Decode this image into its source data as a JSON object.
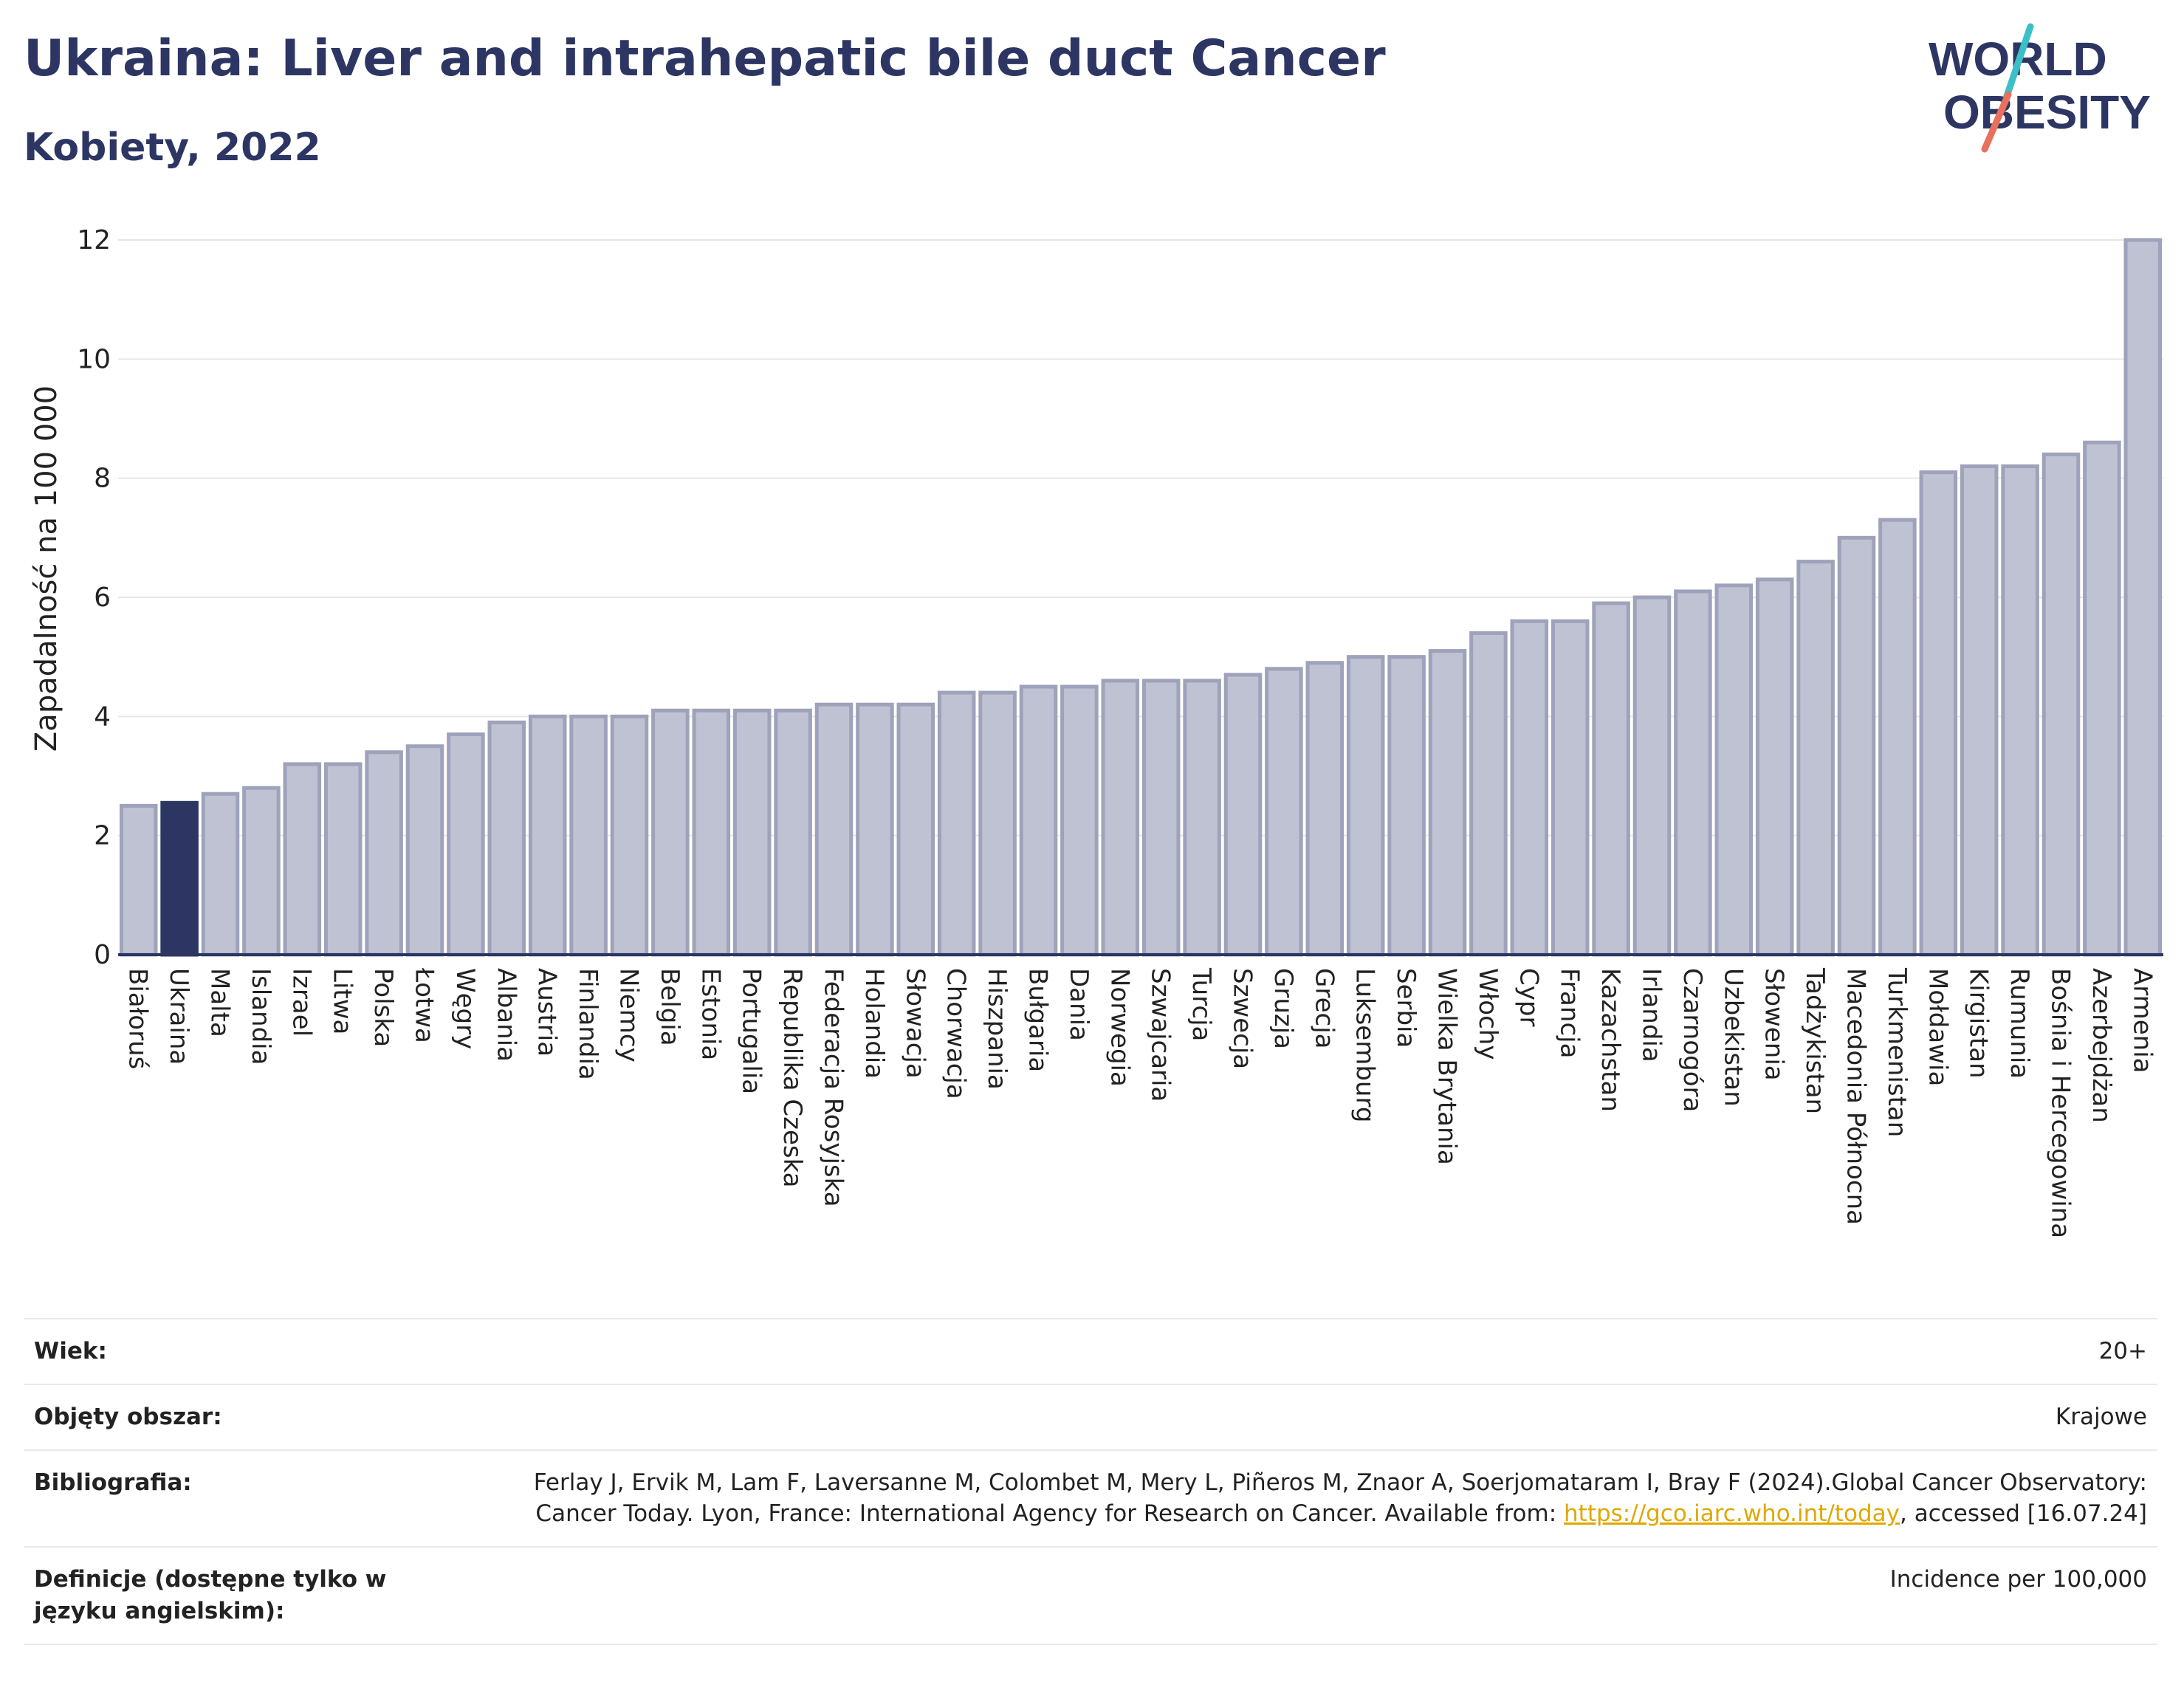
{
  "header": {
    "title": "Ukraina: Liver and intrahepatic bile duct Cancer",
    "subtitle": "Kobiety, 2022"
  },
  "logo": {
    "line1": "WORLD",
    "line2": "OBESITY",
    "colors": {
      "text": "#2d3663",
      "slash_teal": "#3cbfc6",
      "slash_coral": "#e8705c"
    }
  },
  "chart_data": {
    "type": "bar",
    "title": "",
    "xlabel": "",
    "ylabel": "Zapadalność na 100 000",
    "ylim": [
      0,
      12
    ],
    "yticks": [
      0,
      2,
      4,
      6,
      8,
      10,
      12
    ],
    "grid": true,
    "highlight": "Ukraina",
    "categories": [
      "Białoruś",
      "Ukraina",
      "Malta",
      "Islandia",
      "Izrael",
      "Litwa",
      "Polska",
      "Łotwa",
      "Węgry",
      "Albania",
      "Austria",
      "Finlandia",
      "Niemcy",
      "Belgia",
      "Estonia",
      "Portugalia",
      "Republika Czeska",
      "Federacja Rosyjska",
      "Holandia",
      "Słowacja",
      "Chorwacja",
      "Hiszpania",
      "Bułgaria",
      "Dania",
      "Norwegia",
      "Szwajcaria",
      "Turcja",
      "Szwecja",
      "Gruzja",
      "Grecja",
      "Luksemburg",
      "Serbia",
      "Wielka Brytania",
      "Włochy",
      "Cypr",
      "Francja",
      "Kazachstan",
      "Irlandia",
      "Czarnogóra",
      "Uzbekistan",
      "Słowenia",
      "Tadżykistan",
      "Macedonia Północna",
      "Turkmenistan",
      "Mołdawia",
      "Kirgistan",
      "Rumunia",
      "Bośnia i Hercegowina",
      "Azerbejdżan",
      "Armenia"
    ],
    "values": [
      2.5,
      2.55,
      2.7,
      2.8,
      3.2,
      3.2,
      3.4,
      3.5,
      3.7,
      3.9,
      4.0,
      4.0,
      4.0,
      4.1,
      4.1,
      4.1,
      4.1,
      4.2,
      4.2,
      4.2,
      4.4,
      4.4,
      4.5,
      4.5,
      4.6,
      4.6,
      4.6,
      4.7,
      4.8,
      4.9,
      5.0,
      5.0,
      5.1,
      5.4,
      5.6,
      5.6,
      5.9,
      6.0,
      6.1,
      6.2,
      6.3,
      6.6,
      7.0,
      7.3,
      8.1,
      8.2,
      8.2,
      8.4,
      8.6,
      12.0
    ],
    "colors": {
      "bar": "#bfc2d2",
      "bar_border": "#9ea2ba",
      "highlight": "#2d3663",
      "axis": "#2d3663",
      "grid": "#e6e6ea"
    }
  },
  "meta": {
    "age_label": "Wiek:",
    "age_value": "20+",
    "coverage_label": "Objęty obszar:",
    "coverage_value": "Krajowe",
    "bib_label": "Bibliografia:",
    "bib_text_1": "Ferlay J, Ervik M, Lam F, Laversanne M, Colombet M, Mery L, Piñeros M, Znaor A, Soerjomataram I, Bray F (2024).Global Cancer Observatory: Cancer Today. Lyon, France: International Agency for Research on Cancer. Available from: ",
    "bib_link": "https://gco.iarc.who.int/today",
    "bib_text_2": ", accessed [16.07.24]",
    "def_label": "Definicje (dostępne tylko w języku angielskim):",
    "def_value": "Incidence per 100,000"
  }
}
